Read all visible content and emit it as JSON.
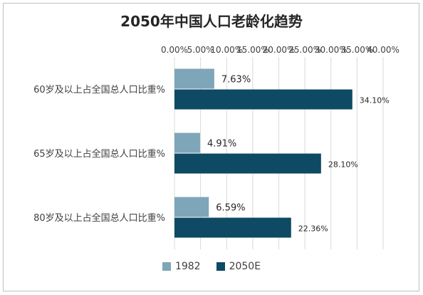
{
  "chart_data": {
    "type": "bar",
    "orientation": "horizontal",
    "title": "2050年中国人口老龄化趋势",
    "categories": [
      "60岁及以上占全国总人口比重%",
      "65岁及以上占全国总人口比重%",
      "80岁及以上占全国总人口比重%"
    ],
    "series": [
      {
        "name": "1982",
        "values": [
          7.63,
          4.91,
          6.59
        ],
        "labels": [
          "7.63%",
          "4.91%",
          "6.59%"
        ],
        "color": "#7ea6b8"
      },
      {
        "name": "2050E",
        "values": [
          34.1,
          28.1,
          22.36
        ],
        "labels": [
          "34.10%",
          "28.10%",
          "22.36%"
        ],
        "color": "#0e4a64"
      }
    ],
    "xlim": [
      0,
      40
    ],
    "ticks": [
      0,
      5,
      10,
      15,
      20,
      25,
      30,
      35,
      40
    ],
    "tick_labels": [
      "0.00%",
      "5.00%",
      "10.00%",
      "15.00%",
      "20.00%",
      "25.00%",
      "30.00%",
      "35.00%",
      "40.00%"
    ],
    "x_axis_position": "top",
    "grid": true,
    "legend": "bottom"
  }
}
